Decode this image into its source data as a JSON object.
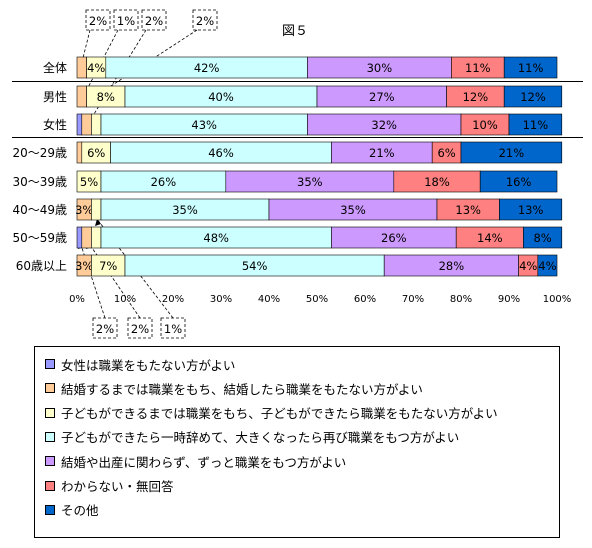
{
  "chart_data": {
    "type": "bar",
    "orientation": "horizontal",
    "stacked": "percent",
    "title": "図５",
    "categories": [
      "全体",
      "男性",
      "女性",
      "20～29歳",
      "30～39歳",
      "40～49歳",
      "50～59歳",
      "60歳以上"
    ],
    "xlim": [
      0,
      100
    ],
    "xticks": [
      "0%",
      "10%",
      "20%",
      "30%",
      "40%",
      "50%",
      "60%",
      "70%",
      "80%",
      "90%",
      "100%"
    ],
    "grid": false,
    "legend_position": "bottom",
    "series": [
      {
        "name": "女性は職業をもたない方がよい",
        "color": "#9999ff",
        "values": [
          0,
          0,
          1,
          0,
          0,
          0,
          1,
          0
        ],
        "labels": [
          "",
          "",
          "",
          "",
          "",
          "",
          "",
          ""
        ]
      },
      {
        "name": "結婚するまでは職業をもち、結婚したら職業をもたない方がよい",
        "color": "#ffcc99",
        "values": [
          2,
          2,
          2,
          1,
          0,
          3,
          2,
          3
        ],
        "labels": [
          "",
          "",
          "",
          "",
          "",
          "3%",
          "",
          "3%"
        ]
      },
      {
        "name": "子どもができるまでは職業をもち、子どもができたら職業をもたない方がよい",
        "color": "#ffffcc",
        "values": [
          4,
          8,
          2,
          6,
          5,
          2,
          2,
          7
        ],
        "labels": [
          "4%",
          "8%",
          "",
          "6%",
          "5%",
          "",
          "",
          "7%"
        ]
      },
      {
        "name": "子どもができたら一時辞めて、大きくなったら再び職業をもつ方がよい",
        "color": "#ccffff",
        "values": [
          42,
          40,
          43,
          46,
          26,
          35,
          48,
          54
        ],
        "labels": [
          "42%",
          "40%",
          "43%",
          "46%",
          "26%",
          "35%",
          "48%",
          "54%"
        ]
      },
      {
        "name": "結婚や出産に関わらず、ずっと職業をもつ方がよい",
        "color": "#cc99ff",
        "values": [
          30,
          27,
          32,
          21,
          35,
          35,
          26,
          28
        ],
        "labels": [
          "30%",
          "27%",
          "32%",
          "21%",
          "35%",
          "35%",
          "26%",
          "28%"
        ]
      },
      {
        "name": "わからない・無回答",
        "color": "#ff8080",
        "values": [
          11,
          12,
          10,
          6,
          18,
          13,
          14,
          4
        ],
        "labels": [
          "11%",
          "12%",
          "10%",
          "6%",
          "18%",
          "13%",
          "14%",
          "4%"
        ]
      },
      {
        "name": "その他",
        "color": "#0066cc",
        "values": [
          11,
          12,
          11,
          21,
          16,
          13,
          8,
          4
        ],
        "labels": [
          "11%",
          "12%",
          "11%",
          "21%",
          "16%",
          "13%",
          "8%",
          "4%"
        ]
      }
    ],
    "callouts_top": [
      "2%",
      "1%",
      "2%",
      "2%"
    ],
    "callouts_bottom": [
      "2%",
      "2%",
      "1%"
    ]
  }
}
